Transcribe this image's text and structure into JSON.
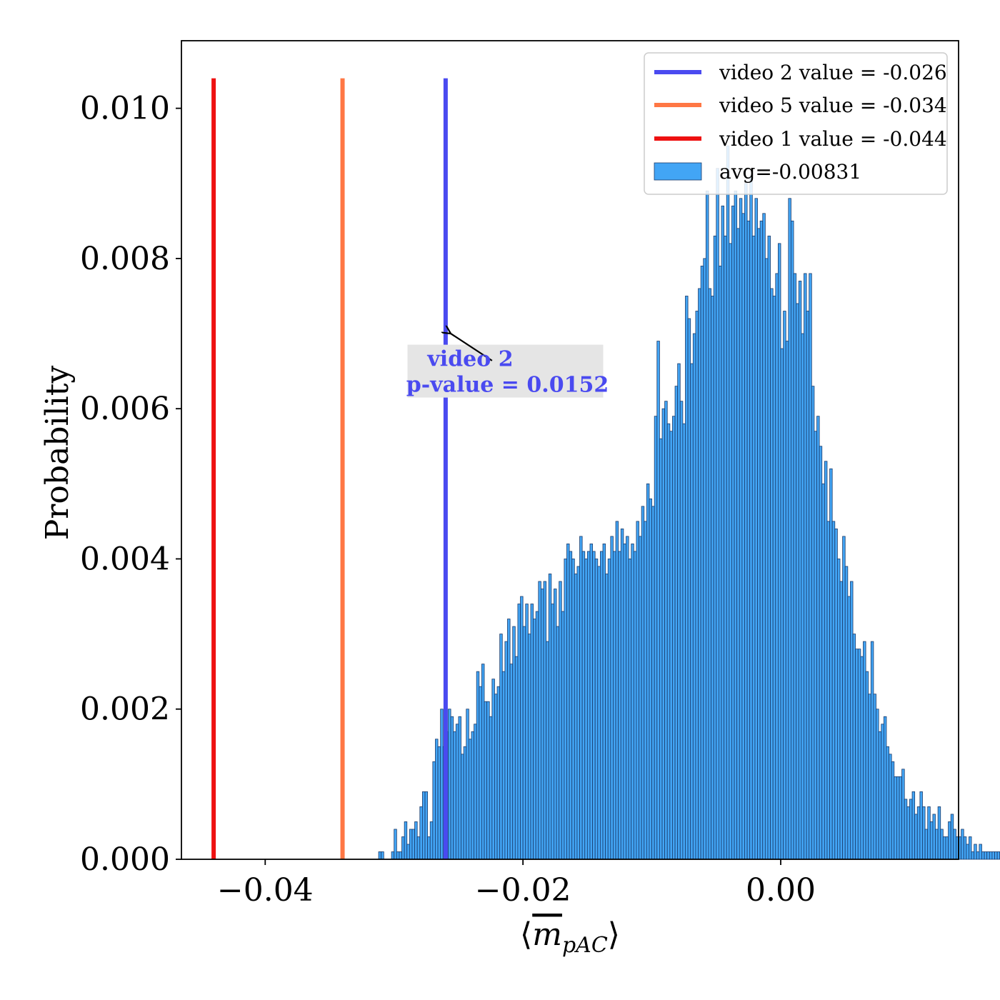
{
  "chart_data": {
    "type": "bar",
    "title": "",
    "xlabel": "⟨m̄pAC⟩",
    "xlabel_parts": {
      "open": "⟨",
      "m": "m",
      "sub": "pAC",
      "close": "⟩"
    },
    "ylabel": "Probability",
    "xlim": [
      -0.0465,
      0.0138
    ],
    "ylim": [
      0,
      0.0109
    ],
    "x_ticks": [
      {
        "value": -0.04,
        "label": "−0.04"
      },
      {
        "value": -0.02,
        "label": "−0.02"
      },
      {
        "value": 0.0,
        "label": "0.00"
      }
    ],
    "y_ticks": [
      {
        "value": 0.0,
        "label": "0.000"
      },
      {
        "value": 0.002,
        "label": "0.002"
      },
      {
        "value": 0.004,
        "label": "0.004"
      },
      {
        "value": 0.006,
        "label": "0.006"
      },
      {
        "value": 0.008,
        "label": "0.008"
      },
      {
        "value": 0.01,
        "label": "0.010"
      }
    ],
    "grid": false,
    "legend_position": "top-right",
    "histogram": {
      "name": "avg=-0.00831",
      "color": "#42a5f5",
      "edge_color": "#1a3a6a",
      "bin_start": -0.0312,
      "bin_width": 0.0002,
      "values": [
        0.0001,
        0.0001,
        0.0,
        0.0,
        0.0,
        0.0001,
        0.0004,
        0.0001,
        0.0001,
        0.0003,
        0.0005,
        0.0002,
        0.0004,
        0.0004,
        0.0005,
        0.0003,
        0.0007,
        0.0009,
        0.0009,
        0.0003,
        0.0005,
        0.0013,
        0.0016,
        0.0015,
        0.002,
        0.0015,
        0.0017,
        0.002,
        0.0019,
        0.0017,
        0.0018,
        0.0019,
        0.0014,
        0.0015,
        0.002,
        0.0016,
        0.0017,
        0.0018,
        0.0025,
        0.0023,
        0.0026,
        0.0021,
        0.0021,
        0.0019,
        0.0024,
        0.0022,
        0.0023,
        0.003,
        0.0025,
        0.0029,
        0.0032,
        0.0026,
        0.0031,
        0.0027,
        0.0034,
        0.0035,
        0.0031,
        0.0034,
        0.003,
        0.0034,
        0.0032,
        0.0033,
        0.0037,
        0.0036,
        0.0037,
        0.0029,
        0.0038,
        0.0034,
        0.0036,
        0.0031,
        0.0037,
        0.0033,
        0.004,
        0.0042,
        0.0041,
        0.004,
        0.0038,
        0.0039,
        0.0043,
        0.0041,
        0.004,
        0.0041,
        0.0042,
        0.0041,
        0.004,
        0.0039,
        0.0041,
        0.0042,
        0.0038,
        0.004,
        0.0043,
        0.0041,
        0.0045,
        0.0041,
        0.0044,
        0.0042,
        0.0043,
        0.004,
        0.0042,
        0.0041,
        0.0045,
        0.0043,
        0.0047,
        0.0045,
        0.005,
        0.0048,
        0.0047,
        0.0059,
        0.0069,
        0.0056,
        0.006,
        0.0061,
        0.0058,
        0.0057,
        0.0059,
        0.0063,
        0.0066,
        0.0061,
        0.0058,
        0.0075,
        0.0072,
        0.0066,
        0.007,
        0.0073,
        0.0076,
        0.0079,
        0.008,
        0.0089,
        0.0076,
        0.0075,
        0.0083,
        0.0092,
        0.0079,
        0.0087,
        0.0083,
        0.0095,
        0.0082,
        0.0087,
        0.0089,
        0.0084,
        0.0088,
        0.0086,
        0.009,
        0.0085,
        0.0091,
        0.0083,
        0.0088,
        0.0084,
        0.0085,
        0.0086,
        0.008,
        0.0083,
        0.0076,
        0.0075,
        0.0078,
        0.0082,
        0.0068,
        0.0073,
        0.0069,
        0.0088,
        0.0085,
        0.0078,
        0.0074,
        0.0077,
        0.007,
        0.0078,
        0.0073,
        0.0078,
        0.0063,
        0.0057,
        0.0059,
        0.0055,
        0.005,
        0.0053,
        0.0045,
        0.0052,
        0.0045,
        0.0044,
        0.004,
        0.0037,
        0.0043,
        0.0039,
        0.0035,
        0.0037,
        0.003,
        0.0028,
        0.0028,
        0.0027,
        0.0029,
        0.0025,
        0.0022,
        0.0029,
        0.0022,
        0.002,
        0.0017,
        0.0018,
        0.0019,
        0.0015,
        0.0014,
        0.0013,
        0.0011,
        0.0011,
        0.0011,
        0.0012,
        0.0008,
        0.0007,
        0.0008,
        0.0009,
        0.0006,
        0.0007,
        0.0009,
        0.0007,
        0.0004,
        0.0007,
        0.0005,
        0.0006,
        0.0004,
        0.0007,
        0.0004,
        0.0003,
        0.0003,
        0.0005,
        0.0006,
        0.0004,
        0.0003,
        0.0003,
        0.0004,
        0.0003,
        0.0002,
        0.0003,
        0.0001,
        0.0002,
        0.0001,
        0.0002,
        0.0001,
        0.0001,
        0.0001,
        0.0001,
        0.0001,
        0.0001,
        0.0001,
        0.0001,
        0.0001,
        0.0001
      ]
    },
    "vertical_lines": [
      {
        "name": "video 2 value = -0.026",
        "x": -0.026,
        "ymax": 0.0104,
        "color": "#4a4af0"
      },
      {
        "name": "video 5 value = -0.034",
        "x": -0.034,
        "ymax": 0.0104,
        "color": "#ff7744"
      },
      {
        "name": "video 1 value = -0.044",
        "x": -0.044,
        "ymax": 0.0104,
        "color": "#ee1111"
      }
    ],
    "annotation": {
      "line1": "video 2",
      "line2": "p-value = 0.0152",
      "color": "#4a4af0",
      "box_color": "#e5e5e5",
      "arrow_to": {
        "x": -0.0256,
        "y": 0.007
      },
      "text_at": {
        "x": -0.0212,
        "y": 0.0065
      }
    }
  }
}
